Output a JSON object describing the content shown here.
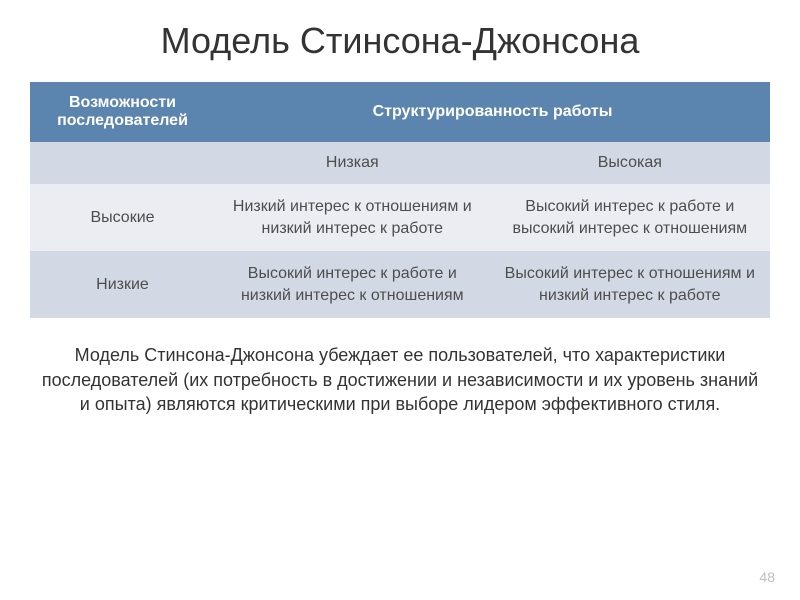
{
  "title": "Модель Стинсона-Джонсона",
  "table": {
    "headers": {
      "col1": "Возможности последователей",
      "col2_span": "Структурированность работы"
    },
    "subheaders": {
      "empty": "",
      "low": "Низкая",
      "high": "Высокая"
    },
    "rows": [
      {
        "label": "Высокие",
        "low_structure": "Низкий интерес к отношениям и низкий интерес к работе",
        "high_structure": "Высокий интерес к работе и высокий интерес  к отношениям"
      },
      {
        "label": "Низкие",
        "low_structure": "Высокий интерес к работе и низкий интерес к отношениям",
        "high_structure": "Высокий интерес к отношениям и низкий интерес к работе"
      }
    ]
  },
  "description": "Модель Стинсона-Джонсона убеждает ее пользователей, что характеристики последователей (их потребность в достижении и независимости и их уровень знаний и опыта) являются критическими при выборе лидером эффективного стиля.",
  "slide_number": "48",
  "colors": {
    "header_bg": "#5b84af",
    "header_text": "#ffffff",
    "subheader_bg": "#d3d9e4",
    "row_alt_bg": "#ebedf3",
    "text": "#4d4d4d",
    "title_text": "#333333"
  }
}
